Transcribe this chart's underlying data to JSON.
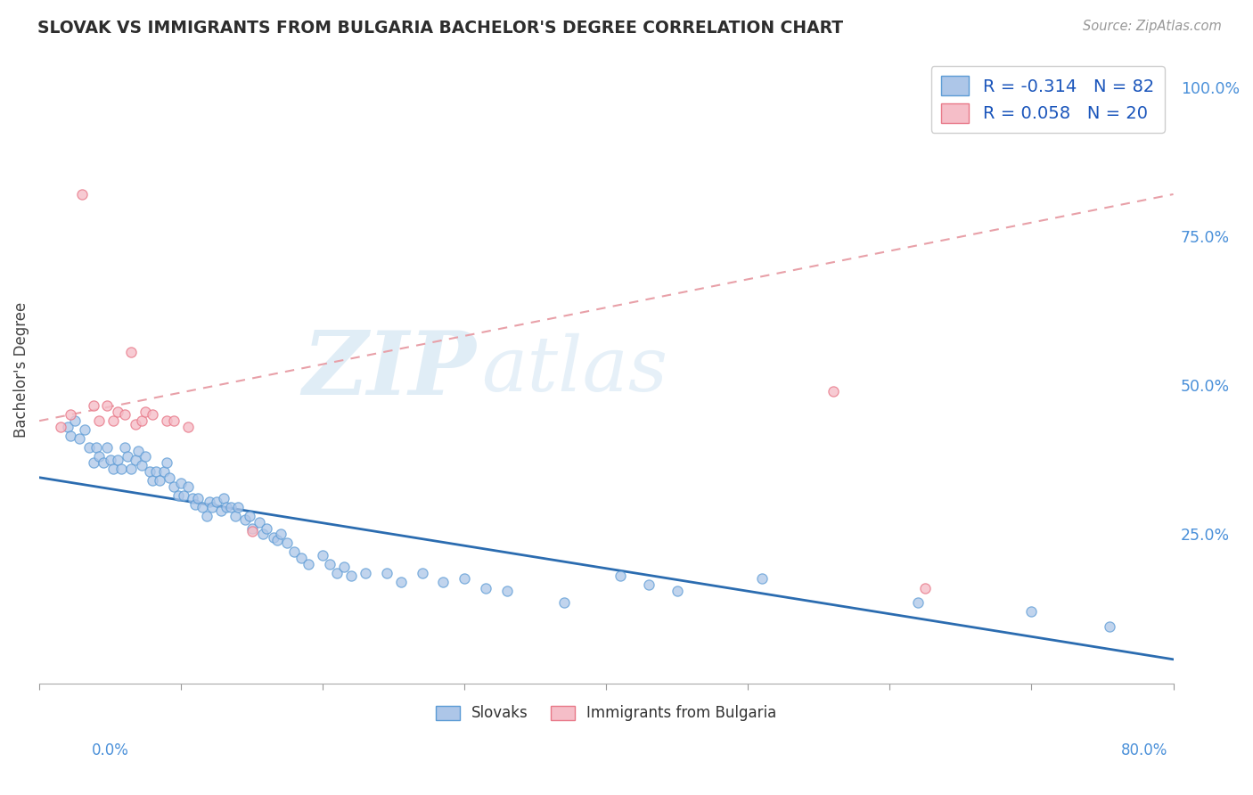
{
  "title": "SLOVAK VS IMMIGRANTS FROM BULGARIA BACHELOR'S DEGREE CORRELATION CHART",
  "source": "Source: ZipAtlas.com",
  "x_left_label": "0.0%",
  "x_right_label": "80.0%",
  "ylabel": "Bachelor's Degree",
  "right_ytick_labels": [
    "100.0%",
    "75.0%",
    "50.0%",
    "25.0%"
  ],
  "right_ytick_vals": [
    1.0,
    0.75,
    0.5,
    0.25
  ],
  "legend_r_slovak": "-0.314",
  "legend_n_slovak": "82",
  "legend_r_bulgaria": "0.058",
  "legend_n_bulgaria": "20",
  "slovak_face_color": "#adc6e8",
  "slovak_edge_color": "#5b9bd5",
  "bulgaria_face_color": "#f5bec8",
  "bulgaria_edge_color": "#e87888",
  "slovak_trend_color": "#2b6cb0",
  "bulgaria_trend_color": "#d46070",
  "bulgaria_trend_dash_color": "#e8a0a8",
  "grid_color": "#c8c8d0",
  "watermark_zip_color": "#c8dff0",
  "watermark_atlas_color": "#c8dff0",
  "label_color": "#4a90d9",
  "title_color": "#2d2d2d",
  "xlim": [
    0.0,
    0.8
  ],
  "ylim": [
    0.0,
    1.05
  ],
  "slovak_trend_x0": 0.0,
  "slovak_trend_y0": 0.345,
  "slovak_trend_x1": 0.8,
  "slovak_trend_y1": 0.04,
  "bulgaria_trend_x0": 0.0,
  "bulgaria_trend_y0": 0.44,
  "bulgaria_trend_x1": 0.8,
  "bulgaria_trend_y1": 0.82,
  "slovak_x": [
    0.02,
    0.022,
    0.025,
    0.028,
    0.032,
    0.035,
    0.038,
    0.04,
    0.042,
    0.045,
    0.048,
    0.05,
    0.052,
    0.055,
    0.058,
    0.06,
    0.062,
    0.065,
    0.068,
    0.07,
    0.072,
    0.075,
    0.078,
    0.08,
    0.082,
    0.085,
    0.088,
    0.09,
    0.092,
    0.095,
    0.098,
    0.1,
    0.102,
    0.105,
    0.108,
    0.11,
    0.112,
    0.115,
    0.118,
    0.12,
    0.122,
    0.125,
    0.128,
    0.13,
    0.132,
    0.135,
    0.138,
    0.14,
    0.145,
    0.148,
    0.15,
    0.155,
    0.158,
    0.16,
    0.165,
    0.168,
    0.17,
    0.175,
    0.18,
    0.185,
    0.19,
    0.2,
    0.205,
    0.21,
    0.215,
    0.22,
    0.23,
    0.245,
    0.255,
    0.27,
    0.285,
    0.3,
    0.315,
    0.33,
    0.37,
    0.41,
    0.43,
    0.45,
    0.51,
    0.62,
    0.7,
    0.755
  ],
  "slovak_y": [
    0.43,
    0.415,
    0.44,
    0.41,
    0.425,
    0.395,
    0.37,
    0.395,
    0.38,
    0.37,
    0.395,
    0.375,
    0.36,
    0.375,
    0.36,
    0.395,
    0.38,
    0.36,
    0.375,
    0.39,
    0.365,
    0.38,
    0.355,
    0.34,
    0.355,
    0.34,
    0.355,
    0.37,
    0.345,
    0.33,
    0.315,
    0.335,
    0.315,
    0.33,
    0.31,
    0.3,
    0.31,
    0.295,
    0.28,
    0.305,
    0.295,
    0.305,
    0.29,
    0.31,
    0.295,
    0.295,
    0.28,
    0.295,
    0.275,
    0.28,
    0.26,
    0.27,
    0.25,
    0.26,
    0.245,
    0.24,
    0.25,
    0.235,
    0.22,
    0.21,
    0.2,
    0.215,
    0.2,
    0.185,
    0.195,
    0.18,
    0.185,
    0.185,
    0.17,
    0.185,
    0.17,
    0.175,
    0.16,
    0.155,
    0.135,
    0.18,
    0.165,
    0.155,
    0.175,
    0.135,
    0.12,
    0.095
  ],
  "bulgaria_x": [
    0.015,
    0.022,
    0.03,
    0.038,
    0.042,
    0.048,
    0.052,
    0.055,
    0.06,
    0.065,
    0.068,
    0.072,
    0.075,
    0.08,
    0.09,
    0.095,
    0.105,
    0.15,
    0.56,
    0.625
  ],
  "bulgaria_y": [
    0.43,
    0.45,
    0.82,
    0.465,
    0.44,
    0.465,
    0.44,
    0.455,
    0.45,
    0.555,
    0.435,
    0.44,
    0.455,
    0.45,
    0.44,
    0.44,
    0.43,
    0.255,
    0.49,
    0.16
  ]
}
